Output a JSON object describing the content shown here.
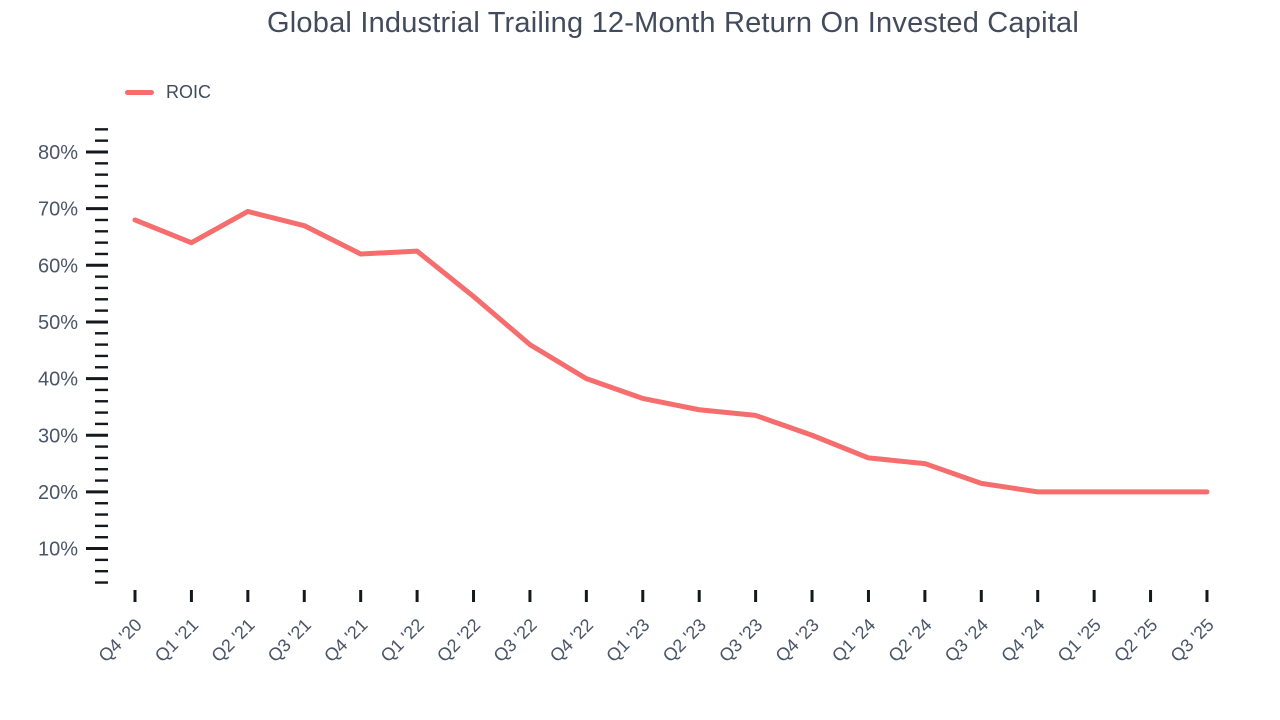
{
  "chart_data": {
    "type": "line",
    "title": "Global Industrial Trailing 12-Month Return On Invested Capital",
    "legend": [
      {
        "label": "ROIC",
        "color": "#F66D6D"
      }
    ],
    "legend_position": "top-left",
    "grid": false,
    "categories": [
      "Q4 '20",
      "Q1 '21",
      "Q2 '21",
      "Q3 '21",
      "Q4 '21",
      "Q1 '22",
      "Q2 '22",
      "Q3 '22",
      "Q4 '22",
      "Q1 '23",
      "Q2 '23",
      "Q3 '23",
      "Q4 '23",
      "Q1 '24",
      "Q2 '24",
      "Q3 '24",
      "Q4 '24",
      "Q1 '25",
      "Q2 '25",
      "Q3 '25"
    ],
    "series": [
      {
        "name": "ROIC",
        "color": "#F66D6D",
        "values": [
          68,
          64,
          69.5,
          67,
          62,
          62.5,
          54.5,
          46,
          40,
          36.5,
          34.5,
          33.5,
          30,
          26,
          25,
          21.5,
          20,
          20,
          20,
          20
        ]
      }
    ],
    "xlabel": "",
    "ylabel": "",
    "y_axis": {
      "unit": "%",
      "range": [
        4,
        84
      ],
      "minor_tick_step": 2,
      "major_ticks": [
        10,
        20,
        30,
        40,
        50,
        60,
        70,
        80
      ],
      "labels": [
        "10%",
        "20%",
        "30%",
        "40%",
        "50%",
        "60%",
        "70%",
        "80%"
      ]
    },
    "colors": {
      "line": "#F66D6D",
      "title": "#414B5C",
      "axis_text": "#4A5568",
      "tick": "#15191E"
    }
  }
}
